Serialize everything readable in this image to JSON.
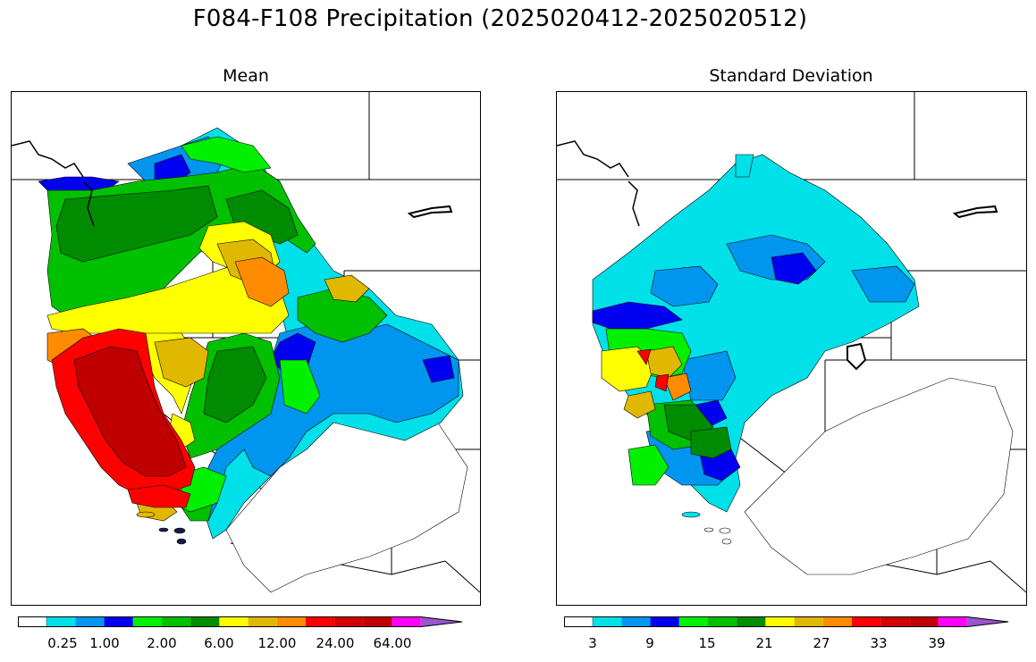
{
  "title": "F084-F108 Precipitation (2025020412-2025020512)",
  "panels": {
    "mean": {
      "subtitle": "Mean",
      "colorbar_ticks": [
        "0.25",
        "1.00",
        "2.00",
        "6.00",
        "12.00",
        "24.00",
        "64.00"
      ]
    },
    "stddev": {
      "subtitle": "Standard Deviation",
      "colorbar_ticks": [
        "3",
        "9",
        "15",
        "21",
        "27",
        "33",
        "39"
      ]
    }
  },
  "colors": {
    "scale": [
      "#ffffff",
      "#00e0e8",
      "#0096f0",
      "#0000f0",
      "#00f000",
      "#00c000",
      "#008c00",
      "#ffff00",
      "#e0b800",
      "#ff8c00",
      "#ff0000",
      "#d00000",
      "#c00000",
      "#ff00ff",
      "#9955cc"
    ]
  }
}
